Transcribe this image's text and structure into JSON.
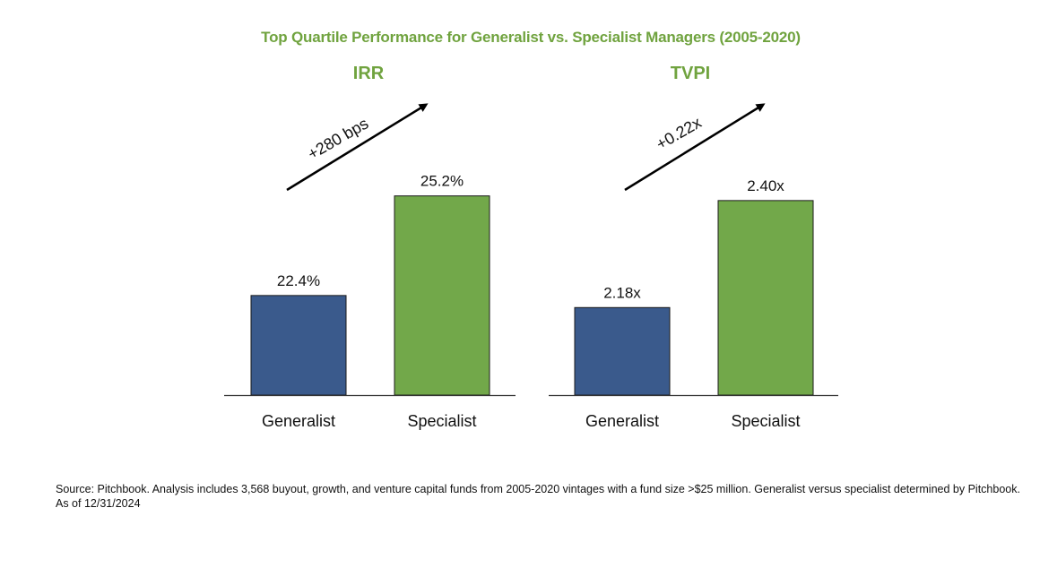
{
  "title": "Top Quartile Performance for Generalist vs. Specialist Managers (2005-2020)",
  "source_note": "Source: Pitchbook. Analysis includes 3,568 buyout, growth, and venture capital funds from 2005-2020 vintages with a fund size >$25 million.  Generalist versus specialist determined by Pitchbook. As of 12/31/2024",
  "colors": {
    "title": "#70a33f",
    "generalist": "#3a5a8c",
    "specialist": "#72a84a",
    "axis": "#333333",
    "text": "#111111"
  },
  "chart_data": [
    {
      "type": "bar",
      "title": "IRR",
      "categories": [
        "Generalist",
        "Specialist"
      ],
      "values": [
        22.4,
        25.2
      ],
      "value_labels": [
        "22.4%",
        "25.2%"
      ],
      "unit": "%",
      "ylim": [
        19.6,
        26.3
      ],
      "grid": false,
      "annotation": "+280 bps"
    },
    {
      "type": "bar",
      "title": "TVPI",
      "categories": [
        "Generalist",
        "Specialist"
      ],
      "values": [
        2.18,
        2.4
      ],
      "value_labels": [
        "2.18x",
        "2.40x"
      ],
      "unit": "x",
      "ylim": [
        2.0,
        2.49
      ],
      "grid": false,
      "annotation": "+0.22x"
    }
  ]
}
